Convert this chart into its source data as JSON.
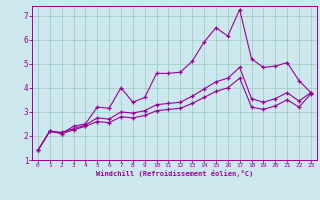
{
  "xlabel": "Windchill (Refroidissement éolien,°C)",
  "bg_color": "#cce8ee",
  "line_color": "#990099",
  "grid_color": "#99ccbb",
  "xlim": [
    -0.5,
    23.5
  ],
  "ylim": [
    1,
    7.4
  ],
  "xticks": [
    0,
    1,
    2,
    3,
    4,
    5,
    6,
    7,
    8,
    9,
    10,
    11,
    12,
    13,
    14,
    15,
    16,
    17,
    18,
    19,
    20,
    21,
    22,
    23
  ],
  "yticks": [
    1,
    2,
    3,
    4,
    5,
    6,
    7
  ],
  "line1_x": [
    0,
    1,
    2,
    3,
    4,
    5,
    6,
    7,
    8,
    9,
    10,
    11,
    12,
    13,
    14,
    15,
    16,
    17,
    18,
    19,
    20,
    21,
    22,
    23
  ],
  "line1_y": [
    1.4,
    2.2,
    2.1,
    2.4,
    2.5,
    3.2,
    3.15,
    4.0,
    3.4,
    3.6,
    4.6,
    4.6,
    4.65,
    5.1,
    5.9,
    6.5,
    6.15,
    7.25,
    5.2,
    4.85,
    4.9,
    5.05,
    4.3,
    3.8
  ],
  "line2_x": [
    0,
    1,
    2,
    3,
    4,
    5,
    6,
    7,
    8,
    9,
    10,
    11,
    12,
    13,
    14,
    15,
    16,
    17,
    18,
    19,
    20,
    21,
    22,
    23
  ],
  "line2_y": [
    1.4,
    2.2,
    2.15,
    2.3,
    2.45,
    2.75,
    2.7,
    3.0,
    2.95,
    3.05,
    3.3,
    3.35,
    3.4,
    3.65,
    3.95,
    4.25,
    4.4,
    4.85,
    3.55,
    3.4,
    3.55,
    3.8,
    3.45,
    3.8
  ],
  "line3_x": [
    0,
    1,
    2,
    3,
    4,
    5,
    6,
    7,
    8,
    9,
    10,
    11,
    12,
    13,
    14,
    15,
    16,
    17,
    18,
    19,
    20,
    21,
    22,
    23
  ],
  "line3_y": [
    1.4,
    2.2,
    2.1,
    2.25,
    2.4,
    2.6,
    2.55,
    2.8,
    2.75,
    2.85,
    3.05,
    3.1,
    3.15,
    3.35,
    3.6,
    3.85,
    4.0,
    4.4,
    3.2,
    3.1,
    3.25,
    3.5,
    3.2,
    3.75
  ]
}
